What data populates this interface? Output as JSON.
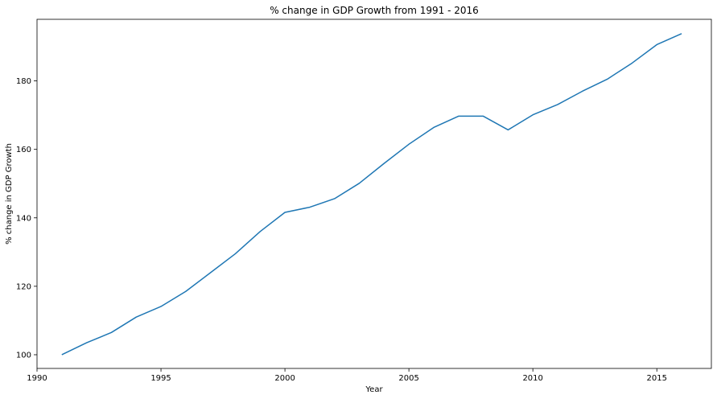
{
  "chart_data": {
    "type": "line",
    "title": "% change in GDP Growth from 1991 - 2016",
    "xlabel": "Year",
    "ylabel": "% change in GDP Growth",
    "xlim": [
      1990,
      2017.2
    ],
    "ylim": [
      96,
      198
    ],
    "xticks": [
      1990,
      1995,
      2000,
      2005,
      2010,
      2015
    ],
    "yticks": [
      100,
      120,
      140,
      160,
      180
    ],
    "grid": false,
    "line_color": "#1f77b4",
    "series": [
      {
        "x": [
          1991,
          1992,
          1993,
          1994,
          1995,
          1996,
          1997,
          1998,
          1999,
          2000,
          2001,
          2002,
          2003,
          2004,
          2005,
          2006,
          2007,
          2008,
          2009,
          2010,
          2011,
          2012,
          2013,
          2014,
          2015,
          2016
        ],
        "values": [
          100.0,
          103.5,
          106.5,
          111.0,
          114.1,
          118.5,
          124.0,
          129.5,
          136.0,
          141.6,
          143.1,
          145.6,
          150.1,
          155.9,
          161.5,
          166.4,
          169.7,
          169.7,
          165.7,
          170.1,
          173.1,
          177.0,
          180.5,
          185.2,
          190.6,
          193.8
        ]
      }
    ]
  }
}
